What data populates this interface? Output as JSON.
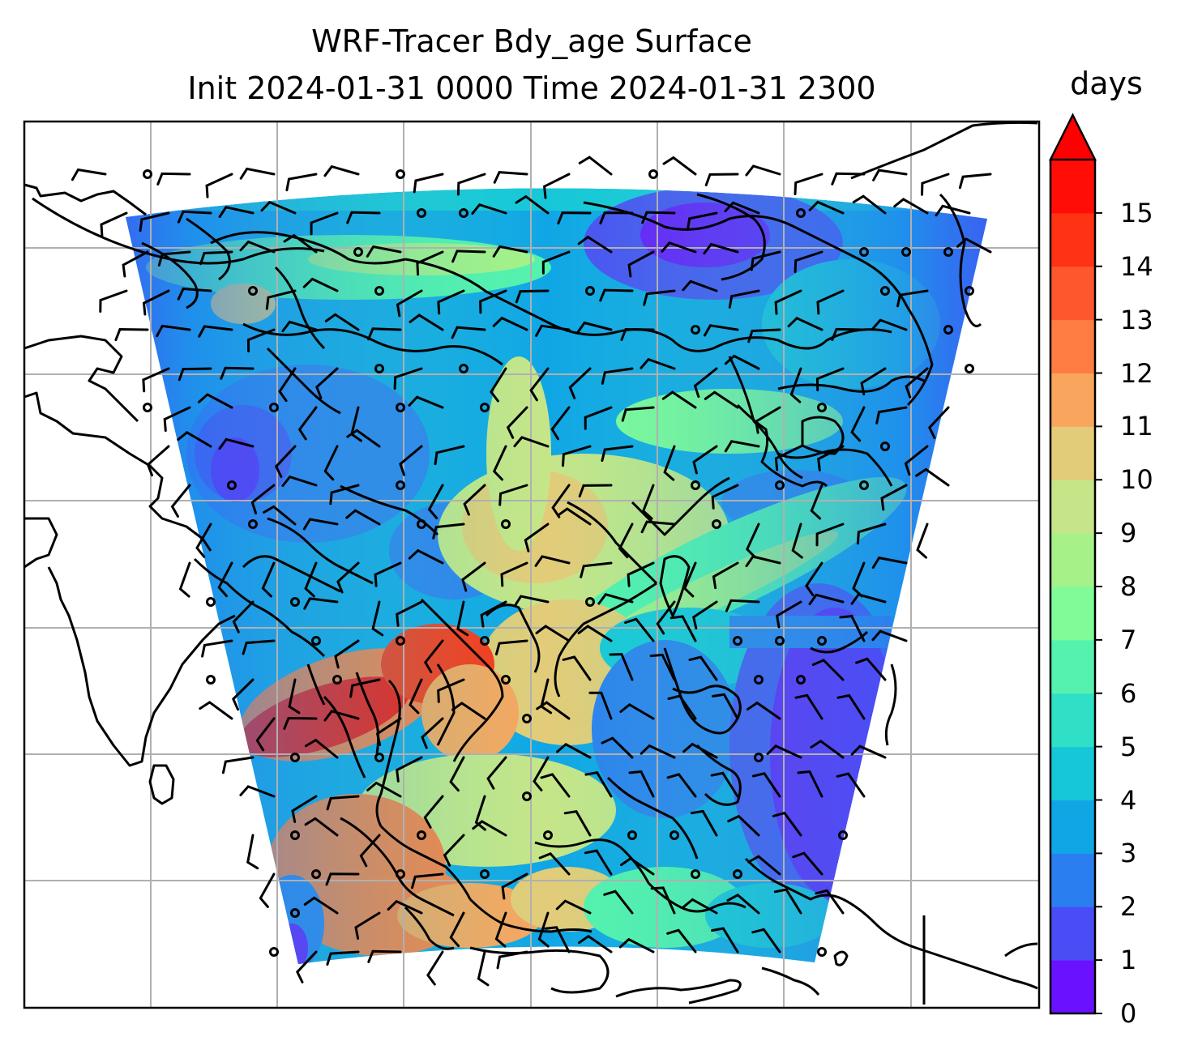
{
  "title": {
    "line1": "WRF-Tracer Bdy_age Surface",
    "line2": "Init 2024-01-31 0000 Time 2024-01-31 2300"
  },
  "map": {
    "variable": "Bdy_age",
    "level": "Surface",
    "overlay": "wind barbs",
    "gridlines": true
  },
  "colorbar": {
    "label": "days",
    "ticks": [
      "0",
      "1",
      "2",
      "3",
      "4",
      "5",
      "6",
      "7",
      "8",
      "9",
      "10",
      "11",
      "12",
      "13",
      "14",
      "15"
    ],
    "extend": "max",
    "colormap": "rainbow",
    "colors": [
      "#6a11ff",
      "#4a4df5",
      "#2b7ef0",
      "#10a6e6",
      "#16c7d9",
      "#2fe0c6",
      "#54f2ae",
      "#80fb98",
      "#a6f188",
      "#c6e589",
      "#e3cc79",
      "#faa55e",
      "#ff7d42",
      "#ff572d",
      "#ff3214",
      "#ff0d06"
    ],
    "extend_color": "#ff0000"
  }
}
